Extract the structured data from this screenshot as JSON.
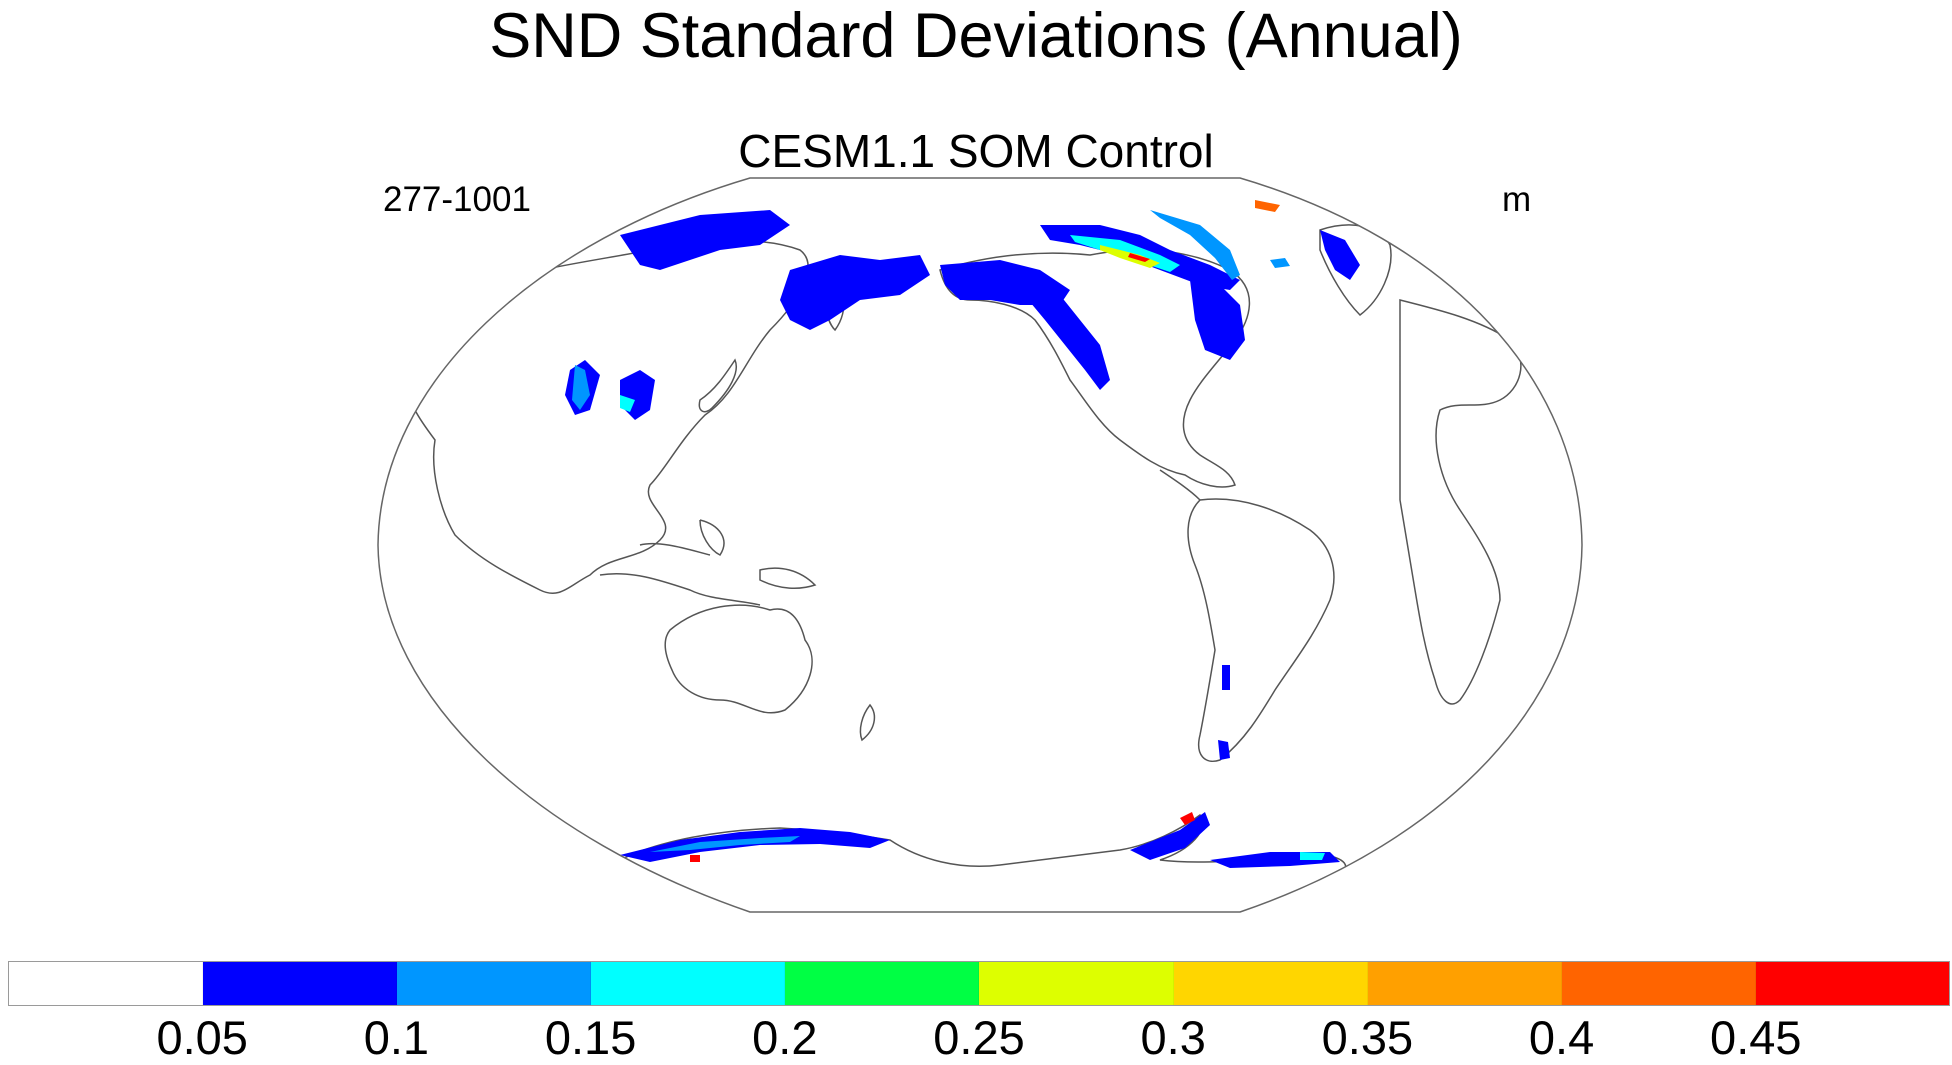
{
  "title": "SND Standard Deviations (Annual)",
  "subtitle": "CESM1.1 SOM Control",
  "left_label": "277-1001",
  "right_label": "m",
  "projection": "Winkel tripel-like world map, centered on Pacific",
  "colorbar": {
    "colors": [
      "#ffffff",
      "#0000ff",
      "#0096ff",
      "#00ffff",
      "#00ff44",
      "#ddff00",
      "#ffd600",
      "#ffa000",
      "#ff6400",
      "#ff0000"
    ],
    "labels": [
      "0.05",
      "0.1",
      "0.15",
      "0.2",
      "0.25",
      "0.3",
      "0.35",
      "0.4",
      "0.45"
    ]
  },
  "colors": {
    "coastline": "#555555",
    "frame": "#666666"
  }
}
